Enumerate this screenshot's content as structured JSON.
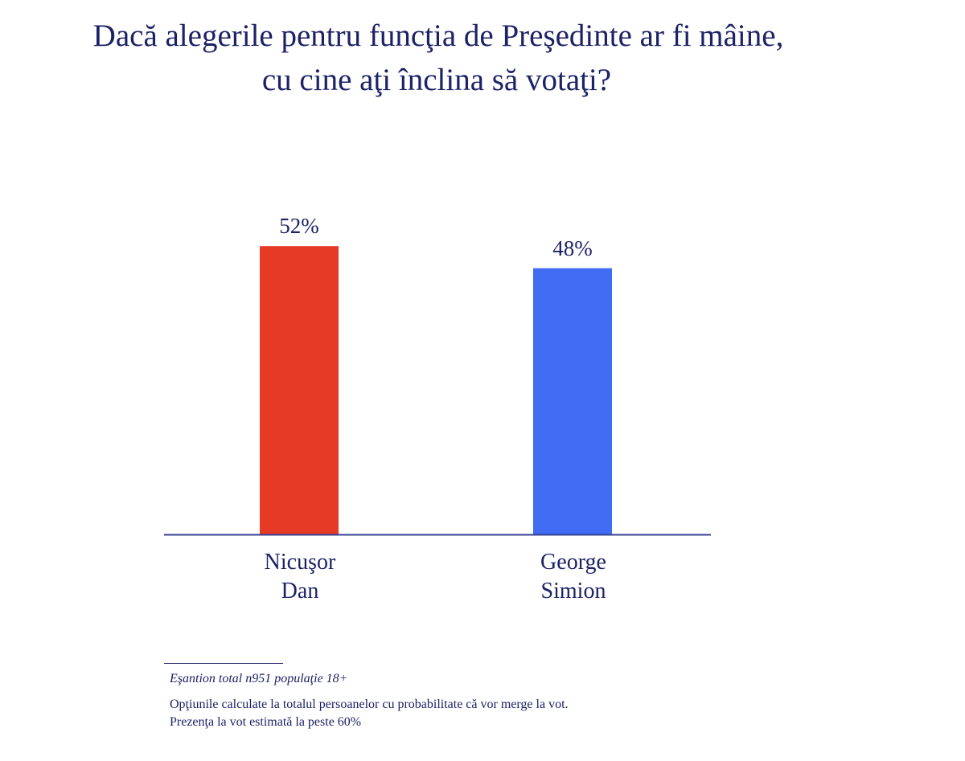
{
  "chart_data": {
    "type": "bar",
    "title_lines": [
      "Dacă alegerile pentru funcţia de Preşedinte ar fi mâine,",
      "cu cine aţi înclina să votaţi?"
    ],
    "categories": [
      {
        "line1": "Nicuşor",
        "line2": "Dan"
      },
      {
        "line1": "George",
        "line2": "Simion"
      }
    ],
    "values": [
      52,
      48
    ],
    "value_labels": [
      "52%",
      "48%"
    ],
    "colors": [
      "#e63a27",
      "#3f6cf2"
    ],
    "xlabel": "",
    "ylabel": "",
    "ylim": [
      0,
      100
    ],
    "grid": false,
    "legend": "none"
  },
  "footnotes": {
    "sample": "Eşantion total n951 populaţie 18+",
    "note_line1": "Opţiunile calculate la totalul persoanelor cu probabilitate că vor merge la vot.",
    "note_line2": "Prezenţa la vot estimată la peste 60%"
  },
  "colors": {
    "text": "#1c2266",
    "axis": "#3a4090"
  }
}
